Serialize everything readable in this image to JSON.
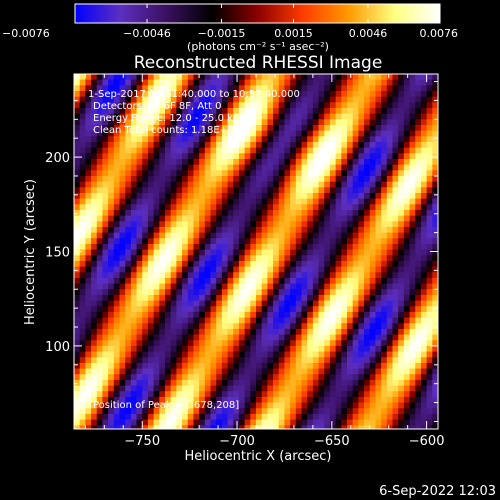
{
  "chart_data": {
    "type": "heatmap",
    "title": "Reconstructed RHESSI Image",
    "xlabel": "Heliocentric X (arcsec)",
    "ylabel": "Heliocentric Y (arcsec)",
    "xlim": [
      -786,
      -594
    ],
    "ylim": [
      56,
      244
    ],
    "xticks": [
      -750,
      -700,
      -650,
      -600
    ],
    "xtick_labels": [
      "−750",
      "−700",
      "−650",
      "−600"
    ],
    "yticks": [
      100,
      150,
      200
    ],
    "ytick_labels": [
      "100",
      "150",
      "200"
    ],
    "grid": false,
    "colorbar": {
      "position": "top",
      "min": -0.0076,
      "max": 0.0076,
      "ticks": [
        -0.0076,
        -0.0046,
        -0.0015,
        0.0015,
        0.0046,
        0.0076
      ],
      "tick_labels": [
        "−0.0076",
        "−0.0046",
        "−0.0015",
        "0.0015",
        "0.0046",
        "0.0076"
      ],
      "unit_label": "(photons cm⁻² s⁻¹ asec⁻²)",
      "colormap": [
        "#0000ff",
        "#5d2fc0",
        "#3a1060",
        "#000000",
        "#8b0000",
        "#ff3c00",
        "#ff9a00",
        "#ffff80",
        "#ffffff"
      ]
    },
    "annotations": {
      "time_range": "1-Sep-2017 10:51:40.000 to 10:57:40.000",
      "detectors": "Detectors: 3F 6F 8F, Att 0",
      "energy_range": "Energy Range: 12.0 - 25.0 keV",
      "clean": "Clean     Total counts: 1.18E+04",
      "peak_position": "Position of Peak = [-678,208]"
    },
    "peak": [
      -678,
      208
    ],
    "pattern": {
      "ridge_centers_x_at_y150": [
        -795,
        -736,
        -683,
        -630,
        -579
      ],
      "ridge_slope_x_per_y": 0.58,
      "ridge_period_x": 53,
      "peak_amplitude": 0.0076,
      "min_amplitude": -0.0076
    }
  },
  "footer": {
    "timestamp": "6-Sep-2022 12:03"
  }
}
